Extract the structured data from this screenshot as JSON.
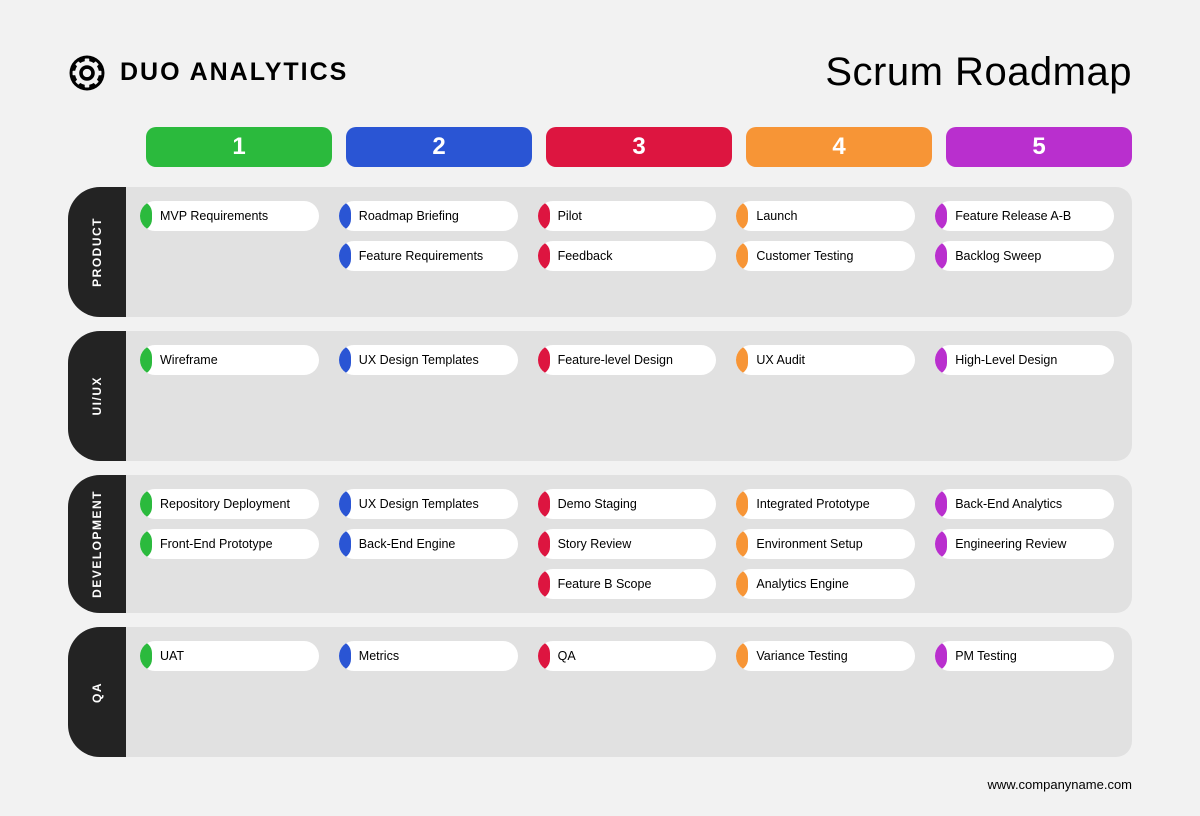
{
  "brand": "DUO ANALYTICS",
  "title": "Scrum Roadmap",
  "footer_url": "www.companyname.com",
  "sprint_colors": [
    "#2bba3d",
    "#2a55d4",
    "#dd1540",
    "#f79536",
    "#b92fce"
  ],
  "sprints": [
    "1",
    "2",
    "3",
    "4",
    "5"
  ],
  "lane_height_min": [
    130,
    130,
    130,
    130
  ],
  "lanes": [
    {
      "label": "PRODUCT",
      "cols": [
        [
          "MVP Requirements"
        ],
        [
          "Roadmap Briefing",
          "Feature Requirements"
        ],
        [
          "Pilot",
          "Feedback"
        ],
        [
          "Launch",
          "Customer Testing"
        ],
        [
          "Feature Release A-B",
          "Backlog Sweep"
        ]
      ]
    },
    {
      "label": "UI/UX",
      "cols": [
        [
          "Wireframe"
        ],
        [
          "UX Design Templates"
        ],
        [
          "Feature-level Design"
        ],
        [
          "UX Audit"
        ],
        [
          "High-Level Design"
        ]
      ]
    },
    {
      "label": "DEVELOPMENT",
      "cols": [
        [
          "Repository Deployment",
          "Front-End Prototype"
        ],
        [
          "UX Design Templates",
          "Back-End Engine"
        ],
        [
          "Demo Staging",
          "Story Review",
          "Feature B Scope"
        ],
        [
          "Integrated Prototype",
          "Environment Setup",
          "Analytics Engine"
        ],
        [
          "Back-End Analytics",
          "Engineering Review"
        ]
      ]
    },
    {
      "label": "QA",
      "cols": [
        [
          "UAT"
        ],
        [
          "Metrics"
        ],
        [
          "QA"
        ],
        [
          "Variance Testing"
        ],
        [
          "PM Testing"
        ]
      ]
    }
  ],
  "style": {
    "background": "#f2f2f2",
    "lane_body_bg": "#e1e1e1",
    "lane_label_bg": "#232323",
    "card_bg": "#ffffff"
  }
}
